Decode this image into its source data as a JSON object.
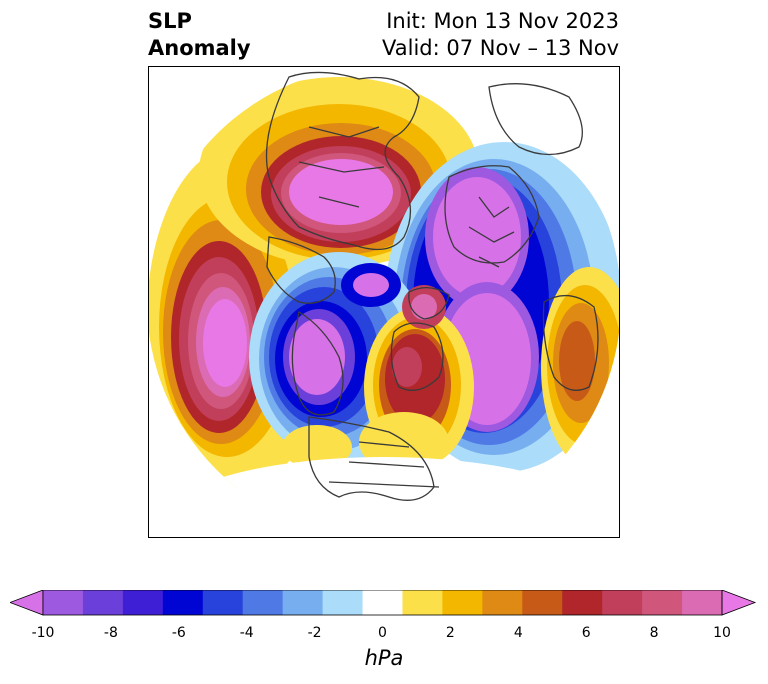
{
  "title": {
    "variable_line1": "SLP",
    "variable_line2": "Anomaly",
    "init_text": "Init: Mon 13 Nov 2023",
    "valid_text": "Valid: 07 Nov – 13 Nov"
  },
  "map": {
    "projection": "north-polar-stereographic",
    "field": "sea-level pressure anomaly",
    "features": [
      {
        "name": "pacific-high",
        "sign": "positive",
        "peak_hpa": 10
      },
      {
        "name": "siberia-high",
        "sign": "positive",
        "peak_hpa": 10
      },
      {
        "name": "arctic-ridge",
        "sign": "positive",
        "peak_hpa": 7
      },
      {
        "name": "alaska-canada-low",
        "sign": "negative",
        "peak_hpa": -10
      },
      {
        "name": "north-atlantic-low",
        "sign": "negative",
        "peak_hpa": -10
      },
      {
        "name": "europe-low",
        "sign": "negative",
        "peak_hpa": -10
      },
      {
        "name": "azores-high",
        "sign": "positive",
        "peak_hpa": 5
      },
      {
        "name": "eastern-us-high",
        "sign": "positive",
        "peak_hpa": 2
      }
    ]
  },
  "colorbar": {
    "label": "hPa",
    "tick_labels": [
      "-10",
      "-8",
      "-6",
      "-4",
      "-2",
      "0",
      "2",
      "4",
      "6",
      "8",
      "10"
    ],
    "tick_values": [
      -10,
      -8,
      -6,
      -4,
      -2,
      0,
      2,
      4,
      6,
      8,
      10
    ],
    "bounds": [
      -10,
      10
    ],
    "extend": "both",
    "colors": [
      "#d671e8",
      "#9d59e0",
      "#6b3fd9",
      "#3f1fd6",
      "#0005d3",
      "#2842dc",
      "#4f7ae6",
      "#77aef0",
      "#abdcf9",
      "#ffffff",
      "#fce049",
      "#f4b700",
      "#de8a14",
      "#c85a17",
      "#b1262a",
      "#c13f5a",
      "#d0567c",
      "#db6bb2",
      "#e778e5"
    ]
  }
}
